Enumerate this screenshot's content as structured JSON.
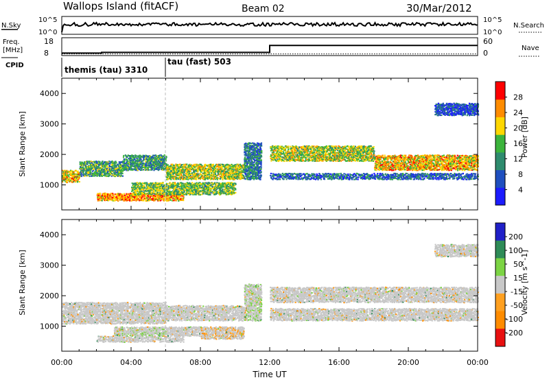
{
  "header": {
    "station": "Wallops Island (fitACF)",
    "beam": "Beam 02",
    "date": "30/Mar/2012"
  },
  "strips": {
    "nsky_label": "N.Sky",
    "nsearch_label": "N.Search",
    "nsky_top_tick": "10^5",
    "nsky_bottom_tick": "10^0",
    "nsearch_top_tick": "10^5",
    "nsearch_bottom_tick": "10^0",
    "freq_label": "Freq.",
    "freq_unit": "[MHz]",
    "freq_ticks": [
      "18",
      "8"
    ],
    "nave_label": "Nave",
    "nave_ticks": [
      "60",
      "0"
    ],
    "cpid_label": "CPID",
    "cpid_segments": [
      {
        "name": "themis (tau) 3310",
        "start_h": 0,
        "end_h": 6
      },
      {
        "name": "tau (fast) 503",
        "start_h": 6,
        "end_h": 24
      }
    ],
    "freq_steps": [
      {
        "start_h": 0,
        "end_h": 2.3,
        "mhz": 9.8
      },
      {
        "start_h": 2.3,
        "end_h": 12,
        "mhz": 10.3
      },
      {
        "start_h": 12,
        "end_h": 24,
        "mhz": 15.4
      }
    ],
    "nave_level": 7
  },
  "chart_data": [
    {
      "type": "heatmap",
      "panel": "power",
      "ylabel": "Slant Range [km]",
      "ylim": [
        180,
        4500
      ],
      "yticks": [
        "1000",
        "2000",
        "3000",
        "4000"
      ],
      "colorbar_label": "Power [dB]",
      "colorbar_ticks": [
        "4",
        "8",
        "12",
        "16",
        "20",
        "24",
        "28"
      ],
      "colorbar_range": [
        0,
        32
      ],
      "colors": [
        "#1c1cff",
        "#1f4fbf",
        "#2e8b6e",
        "#3cb43c",
        "#ffd700",
        "#ff8c00",
        "#ff0000"
      ],
      "bands": [
        {
          "start_h": 0.0,
          "end_h": 1.0,
          "range_km": [
            1100,
            1500
          ],
          "power_db": 22
        },
        {
          "start_h": 1.0,
          "end_h": 3.5,
          "range_km": [
            1300,
            1800
          ],
          "power_db": 14
        },
        {
          "start_h": 3.5,
          "end_h": 6.0,
          "range_km": [
            1500,
            2000
          ],
          "power_db": 12
        },
        {
          "start_h": 2.0,
          "end_h": 7.0,
          "range_km": [
            500,
            750
          ],
          "power_db": 24
        },
        {
          "start_h": 4.0,
          "end_h": 10.0,
          "range_km": [
            700,
            1100
          ],
          "power_db": 16
        },
        {
          "start_h": 6.0,
          "end_h": 10.5,
          "range_km": [
            1200,
            1700
          ],
          "power_db": 18
        },
        {
          "start_h": 10.5,
          "end_h": 11.5,
          "range_km": [
            1200,
            2400
          ],
          "power_db": 10
        },
        {
          "start_h": 12.0,
          "end_h": 18.0,
          "range_km": [
            1800,
            2300
          ],
          "power_db": 18
        },
        {
          "start_h": 18.0,
          "end_h": 24.0,
          "range_km": [
            1500,
            2000
          ],
          "power_db": 22
        },
        {
          "start_h": 12.0,
          "end_h": 24.0,
          "range_km": [
            1200,
            1400
          ],
          "power_db": 8
        },
        {
          "start_h": 21.5,
          "end_h": 24.0,
          "range_km": [
            3300,
            3700
          ],
          "power_db": 6
        }
      ]
    },
    {
      "type": "heatmap",
      "panel": "velocity",
      "ylabel": "Slant Range [km]",
      "ylim": [
        180,
        4500
      ],
      "yticks": [
        "1000",
        "2000",
        "3000",
        "4000"
      ],
      "xlabel": "Time UT",
      "xticks": [
        "00:00",
        "04:00",
        "08:00",
        "12:00",
        "16:00",
        "20:00",
        "00:00"
      ],
      "xlim_h": [
        0,
        24
      ],
      "colorbar_label": "Velocity [m s^-1]",
      "colorbar_ticks": [
        "200",
        "100",
        "50",
        "15",
        "-15",
        "-50",
        "-100",
        "-200"
      ],
      "colorbar_range": [
        -250,
        250
      ],
      "colors": [
        "#2020c8",
        "#2e8b57",
        "#7cd444",
        "#c8c8c8",
        "#ffa020",
        "#ff8c00",
        "#e81010"
      ],
      "bands": [
        {
          "start_h": 0.0,
          "end_h": 6.0,
          "range_km": [
            1100,
            1800
          ],
          "velocity_ms": 0
        },
        {
          "start_h": 2.0,
          "end_h": 7.0,
          "range_km": [
            500,
            700
          ],
          "velocity_ms": 0
        },
        {
          "start_h": 3.0,
          "end_h": 6.0,
          "range_km": [
            700,
            1000
          ],
          "velocity_ms": 30
        },
        {
          "start_h": 6.0,
          "end_h": 8.0,
          "range_km": [
            700,
            1000
          ],
          "velocity_ms": 0
        },
        {
          "start_h": 8.0,
          "end_h": 10.5,
          "range_km": [
            600,
            1000
          ],
          "velocity_ms": -30
        },
        {
          "start_h": 6.0,
          "end_h": 10.5,
          "range_km": [
            1200,
            1700
          ],
          "velocity_ms": 0
        },
        {
          "start_h": 10.5,
          "end_h": 11.5,
          "range_km": [
            1200,
            2400
          ],
          "velocity_ms": 30
        },
        {
          "start_h": 12.0,
          "end_h": 24.0,
          "range_km": [
            1800,
            2300
          ],
          "velocity_ms": 0
        },
        {
          "start_h": 12.0,
          "end_h": 24.0,
          "range_km": [
            1200,
            1600
          ],
          "velocity_ms": 0
        },
        {
          "start_h": 21.5,
          "end_h": 24.0,
          "range_km": [
            3300,
            3700
          ],
          "velocity_ms": 0
        }
      ]
    }
  ]
}
